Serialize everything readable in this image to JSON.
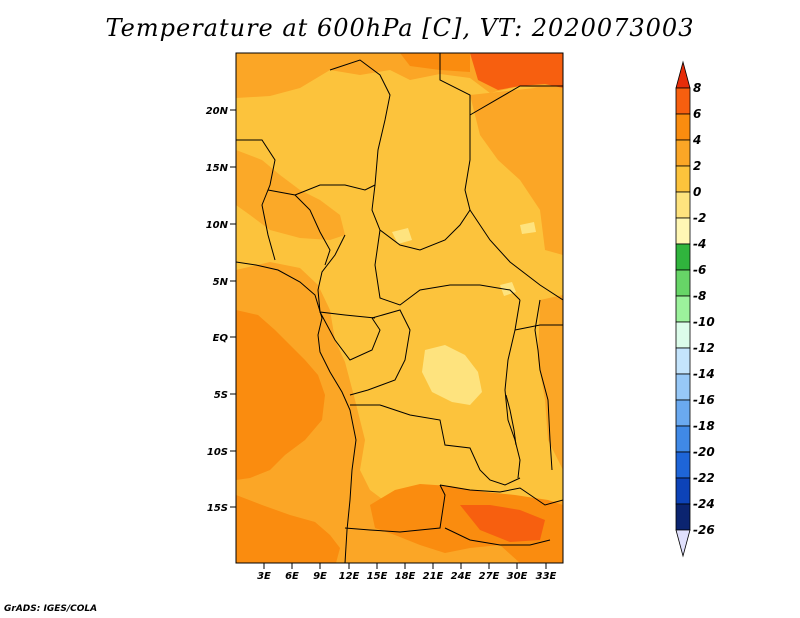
{
  "title": "Temperature at 600hPa [C], VT: 2020073003",
  "credit": "GrADS: IGES/COLA",
  "map": {
    "lat_labels": [
      "20N",
      "15N",
      "10N",
      "5N",
      "EQ",
      "5S",
      "10S",
      "15S"
    ],
    "lon_labels": [
      "3E",
      "6E",
      "9E",
      "12E",
      "15E",
      "18E",
      "21E",
      "24E",
      "27E",
      "30E",
      "33E"
    ]
  },
  "colorbar": {
    "levels": [
      "8",
      "6",
      "4",
      "2",
      "0",
      "-2",
      "-4",
      "-6",
      "-8",
      "-10",
      "-12",
      "-14",
      "-16",
      "-18",
      "-20",
      "-22",
      "-24",
      "-26"
    ],
    "colors": [
      "#e62d0a",
      "#f75f0f",
      "#fa8c0f",
      "#fba626",
      "#fcc33c",
      "#fee37e",
      "#fff7b4",
      "#30b43d",
      "#67d567",
      "#9cf29c",
      "#dcfcea",
      "#c4e4fc",
      "#97c8f7",
      "#6aa9f0",
      "#4089e6",
      "#1e65d8",
      "#0d43b8",
      "#0b2470",
      "#e0e0fc"
    ]
  }
}
